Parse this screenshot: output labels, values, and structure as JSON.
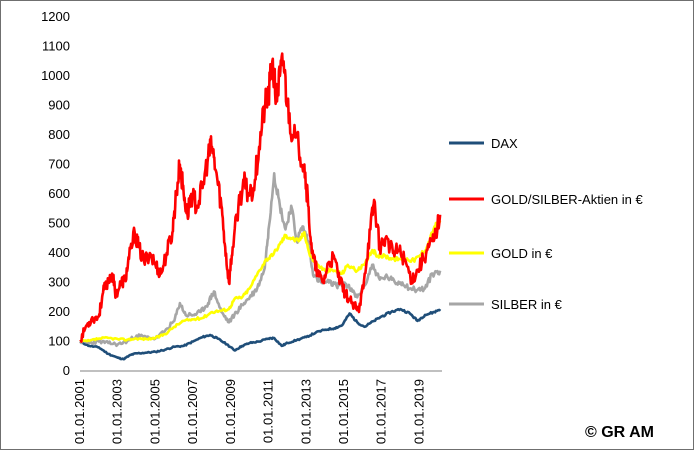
{
  "colors": {
    "dax": "#1f4e79",
    "gold_silver_stocks": "#ff0000",
    "gold": "#ffff00",
    "silver": "#a6a6a6"
  },
  "copyright": "© GR AM",
  "chart_data": {
    "type": "line",
    "ylim": [
      0,
      1200
    ],
    "yticks": [
      0,
      100,
      200,
      300,
      400,
      500,
      600,
      700,
      800,
      900,
      1000,
      1100,
      1200
    ],
    "xlim": [
      2001.0,
      2020.2
    ],
    "xticks": [
      {
        "x": 2001,
        "label": "01.01.2001"
      },
      {
        "x": 2003,
        "label": "01.01.2003"
      },
      {
        "x": 2005,
        "label": "01.01.2005"
      },
      {
        "x": 2007,
        "label": "01.01.2007"
      },
      {
        "x": 2009,
        "label": "01.01.2009"
      },
      {
        "x": 2011,
        "label": "01.01.2011"
      },
      {
        "x": 2013,
        "label": "01.01.2013"
      },
      {
        "x": 2015,
        "label": "01.01.2015"
      },
      {
        "x": 2017,
        "label": "01.01.2017"
      },
      {
        "x": 2019,
        "label": "01.01.2019"
      }
    ],
    "grid": false,
    "legend_position": "right",
    "series": [
      {
        "key": "dax",
        "name": "DAX",
        "points": [
          [
            2001.0,
            100
          ],
          [
            2001.5,
            85
          ],
          [
            2002.0,
            80
          ],
          [
            2002.5,
            58
          ],
          [
            2003.0,
            45
          ],
          [
            2003.3,
            40
          ],
          [
            2003.7,
            55
          ],
          [
            2004.0,
            60
          ],
          [
            2004.5,
            62
          ],
          [
            2005.0,
            65
          ],
          [
            2005.5,
            72
          ],
          [
            2006.0,
            82
          ],
          [
            2006.5,
            85
          ],
          [
            2007.0,
            100
          ],
          [
            2007.5,
            115
          ],
          [
            2007.9,
            122
          ],
          [
            2008.3,
            110
          ],
          [
            2008.8,
            90
          ],
          [
            2009.2,
            70
          ],
          [
            2009.6,
            85
          ],
          [
            2010.0,
            95
          ],
          [
            2010.5,
            100
          ],
          [
            2011.0,
            110
          ],
          [
            2011.3,
            112
          ],
          [
            2011.7,
            85
          ],
          [
            2012.0,
            95
          ],
          [
            2012.5,
            105
          ],
          [
            2013.0,
            115
          ],
          [
            2013.5,
            130
          ],
          [
            2014.0,
            140
          ],
          [
            2014.5,
            145
          ],
          [
            2014.9,
            155
          ],
          [
            2015.3,
            195
          ],
          [
            2015.7,
            165
          ],
          [
            2016.1,
            150
          ],
          [
            2016.6,
            170
          ],
          [
            2017.0,
            185
          ],
          [
            2017.5,
            200
          ],
          [
            2018.0,
            210
          ],
          [
            2018.5,
            195
          ],
          [
            2018.9,
            170
          ],
          [
            2019.3,
            190
          ],
          [
            2019.8,
            200
          ],
          [
            2020.1,
            210
          ]
        ]
      },
      {
        "key": "gold_silver_stocks",
        "name": "GOLD/SILBER-Aktien in €",
        "points": [
          [
            2001.0,
            100
          ],
          [
            2001.3,
            150
          ],
          [
            2001.6,
            175
          ],
          [
            2002.0,
            185
          ],
          [
            2002.2,
            260
          ],
          [
            2002.4,
            295
          ],
          [
            2002.7,
            330
          ],
          [
            2002.9,
            260
          ],
          [
            2003.2,
            300
          ],
          [
            2003.4,
            310
          ],
          [
            2003.6,
            380
          ],
          [
            2003.9,
            470
          ],
          [
            2004.1,
            420
          ],
          [
            2004.4,
            370
          ],
          [
            2004.7,
            400
          ],
          [
            2005.0,
            360
          ],
          [
            2005.3,
            330
          ],
          [
            2005.6,
            400
          ],
          [
            2005.9,
            470
          ],
          [
            2006.1,
            600
          ],
          [
            2006.3,
            700
          ],
          [
            2006.5,
            600
          ],
          [
            2006.7,
            530
          ],
          [
            2006.9,
            600
          ],
          [
            2007.2,
            560
          ],
          [
            2007.5,
            620
          ],
          [
            2007.8,
            730
          ],
          [
            2008.0,
            760
          ],
          [
            2008.2,
            680
          ],
          [
            2008.5,
            560
          ],
          [
            2008.7,
            420
          ],
          [
            2008.9,
            300
          ],
          [
            2009.1,
            420
          ],
          [
            2009.4,
            560
          ],
          [
            2009.7,
            640
          ],
          [
            2009.9,
            600
          ],
          [
            2010.2,
            620
          ],
          [
            2010.5,
            760
          ],
          [
            2010.8,
            900
          ],
          [
            2011.0,
            930
          ],
          [
            2011.2,
            1050
          ],
          [
            2011.4,
            920
          ],
          [
            2011.6,
            1000
          ],
          [
            2011.8,
            1050
          ],
          [
            2012.0,
            900
          ],
          [
            2012.3,
            800
          ],
          [
            2012.6,
            760
          ],
          [
            2012.9,
            700
          ],
          [
            2013.1,
            560
          ],
          [
            2013.3,
            400
          ],
          [
            2013.6,
            330
          ],
          [
            2013.9,
            300
          ],
          [
            2014.2,
            370
          ],
          [
            2014.5,
            380
          ],
          [
            2014.8,
            300
          ],
          [
            2015.1,
            260
          ],
          [
            2015.4,
            230
          ],
          [
            2015.8,
            200
          ],
          [
            2016.1,
            330
          ],
          [
            2016.4,
            480
          ],
          [
            2016.6,
            580
          ],
          [
            2016.9,
            420
          ],
          [
            2017.2,
            450
          ],
          [
            2017.6,
            400
          ],
          [
            2017.9,
            410
          ],
          [
            2018.2,
            380
          ],
          [
            2018.6,
            310
          ],
          [
            2018.9,
            340
          ],
          [
            2019.2,
            380
          ],
          [
            2019.5,
            420
          ],
          [
            2019.8,
            450
          ],
          [
            2020.1,
            530
          ]
        ]
      },
      {
        "key": "gold",
        "name": "GOLD in €",
        "points": [
          [
            2001.0,
            100
          ],
          [
            2001.5,
            102
          ],
          [
            2002.0,
            110
          ],
          [
            2002.5,
            112
          ],
          [
            2003.0,
            108
          ],
          [
            2003.5,
            106
          ],
          [
            2004.0,
            110
          ],
          [
            2004.5,
            108
          ],
          [
            2005.0,
            112
          ],
          [
            2005.5,
            125
          ],
          [
            2006.0,
            150
          ],
          [
            2006.5,
            170
          ],
          [
            2007.0,
            175
          ],
          [
            2007.5,
            180
          ],
          [
            2008.0,
            200
          ],
          [
            2008.5,
            205
          ],
          [
            2008.9,
            210
          ],
          [
            2009.2,
            245
          ],
          [
            2009.6,
            250
          ],
          [
            2010.0,
            280
          ],
          [
            2010.5,
            340
          ],
          [
            2010.9,
            380
          ],
          [
            2011.2,
            390
          ],
          [
            2011.6,
            430
          ],
          [
            2011.9,
            460
          ],
          [
            2012.2,
            450
          ],
          [
            2012.6,
            440
          ],
          [
            2012.9,
            470
          ],
          [
            2013.2,
            390
          ],
          [
            2013.6,
            360
          ],
          [
            2014.0,
            340
          ],
          [
            2014.5,
            340
          ],
          [
            2014.9,
            330
          ],
          [
            2015.2,
            360
          ],
          [
            2015.7,
            340
          ],
          [
            2016.1,
            360
          ],
          [
            2016.5,
            410
          ],
          [
            2016.8,
            390
          ],
          [
            2017.2,
            390
          ],
          [
            2017.6,
            380
          ],
          [
            2017.9,
            380
          ],
          [
            2018.3,
            380
          ],
          [
            2018.7,
            375
          ],
          [
            2019.0,
            390
          ],
          [
            2019.4,
            420
          ],
          [
            2019.8,
            490
          ],
          [
            2020.1,
            510
          ]
        ]
      },
      {
        "key": "silver",
        "name": "SILBER in €",
        "points": [
          [
            2001.0,
            100
          ],
          [
            2001.5,
            95
          ],
          [
            2002.0,
            100
          ],
          [
            2002.5,
            95
          ],
          [
            2003.0,
            90
          ],
          [
            2003.5,
            100
          ],
          [
            2004.0,
            120
          ],
          [
            2004.5,
            115
          ],
          [
            2005.0,
            110
          ],
          [
            2005.5,
            135
          ],
          [
            2006.0,
            170
          ],
          [
            2006.3,
            230
          ],
          [
            2006.6,
            190
          ],
          [
            2007.0,
            190
          ],
          [
            2007.4,
            200
          ],
          [
            2007.8,
            230
          ],
          [
            2008.1,
            270
          ],
          [
            2008.5,
            200
          ],
          [
            2008.9,
            165
          ],
          [
            2009.3,
            200
          ],
          [
            2009.7,
            230
          ],
          [
            2010.0,
            250
          ],
          [
            2010.4,
            280
          ],
          [
            2010.8,
            350
          ],
          [
            2011.0,
            480
          ],
          [
            2011.3,
            670
          ],
          [
            2011.6,
            560
          ],
          [
            2011.9,
            480
          ],
          [
            2012.2,
            560
          ],
          [
            2012.5,
            440
          ],
          [
            2012.8,
            490
          ],
          [
            2013.1,
            440
          ],
          [
            2013.4,
            320
          ],
          [
            2013.8,
            300
          ],
          [
            2014.2,
            300
          ],
          [
            2014.6,
            290
          ],
          [
            2015.0,
            300
          ],
          [
            2015.3,
            280
          ],
          [
            2015.7,
            250
          ],
          [
            2016.1,
            290
          ],
          [
            2016.5,
            360
          ],
          [
            2016.9,
            310
          ],
          [
            2017.3,
            320
          ],
          [
            2017.7,
            300
          ],
          [
            2018.1,
            300
          ],
          [
            2018.5,
            280
          ],
          [
            2018.9,
            275
          ],
          [
            2019.3,
            280
          ],
          [
            2019.7,
            330
          ],
          [
            2020.1,
            340
          ]
        ]
      }
    ]
  }
}
